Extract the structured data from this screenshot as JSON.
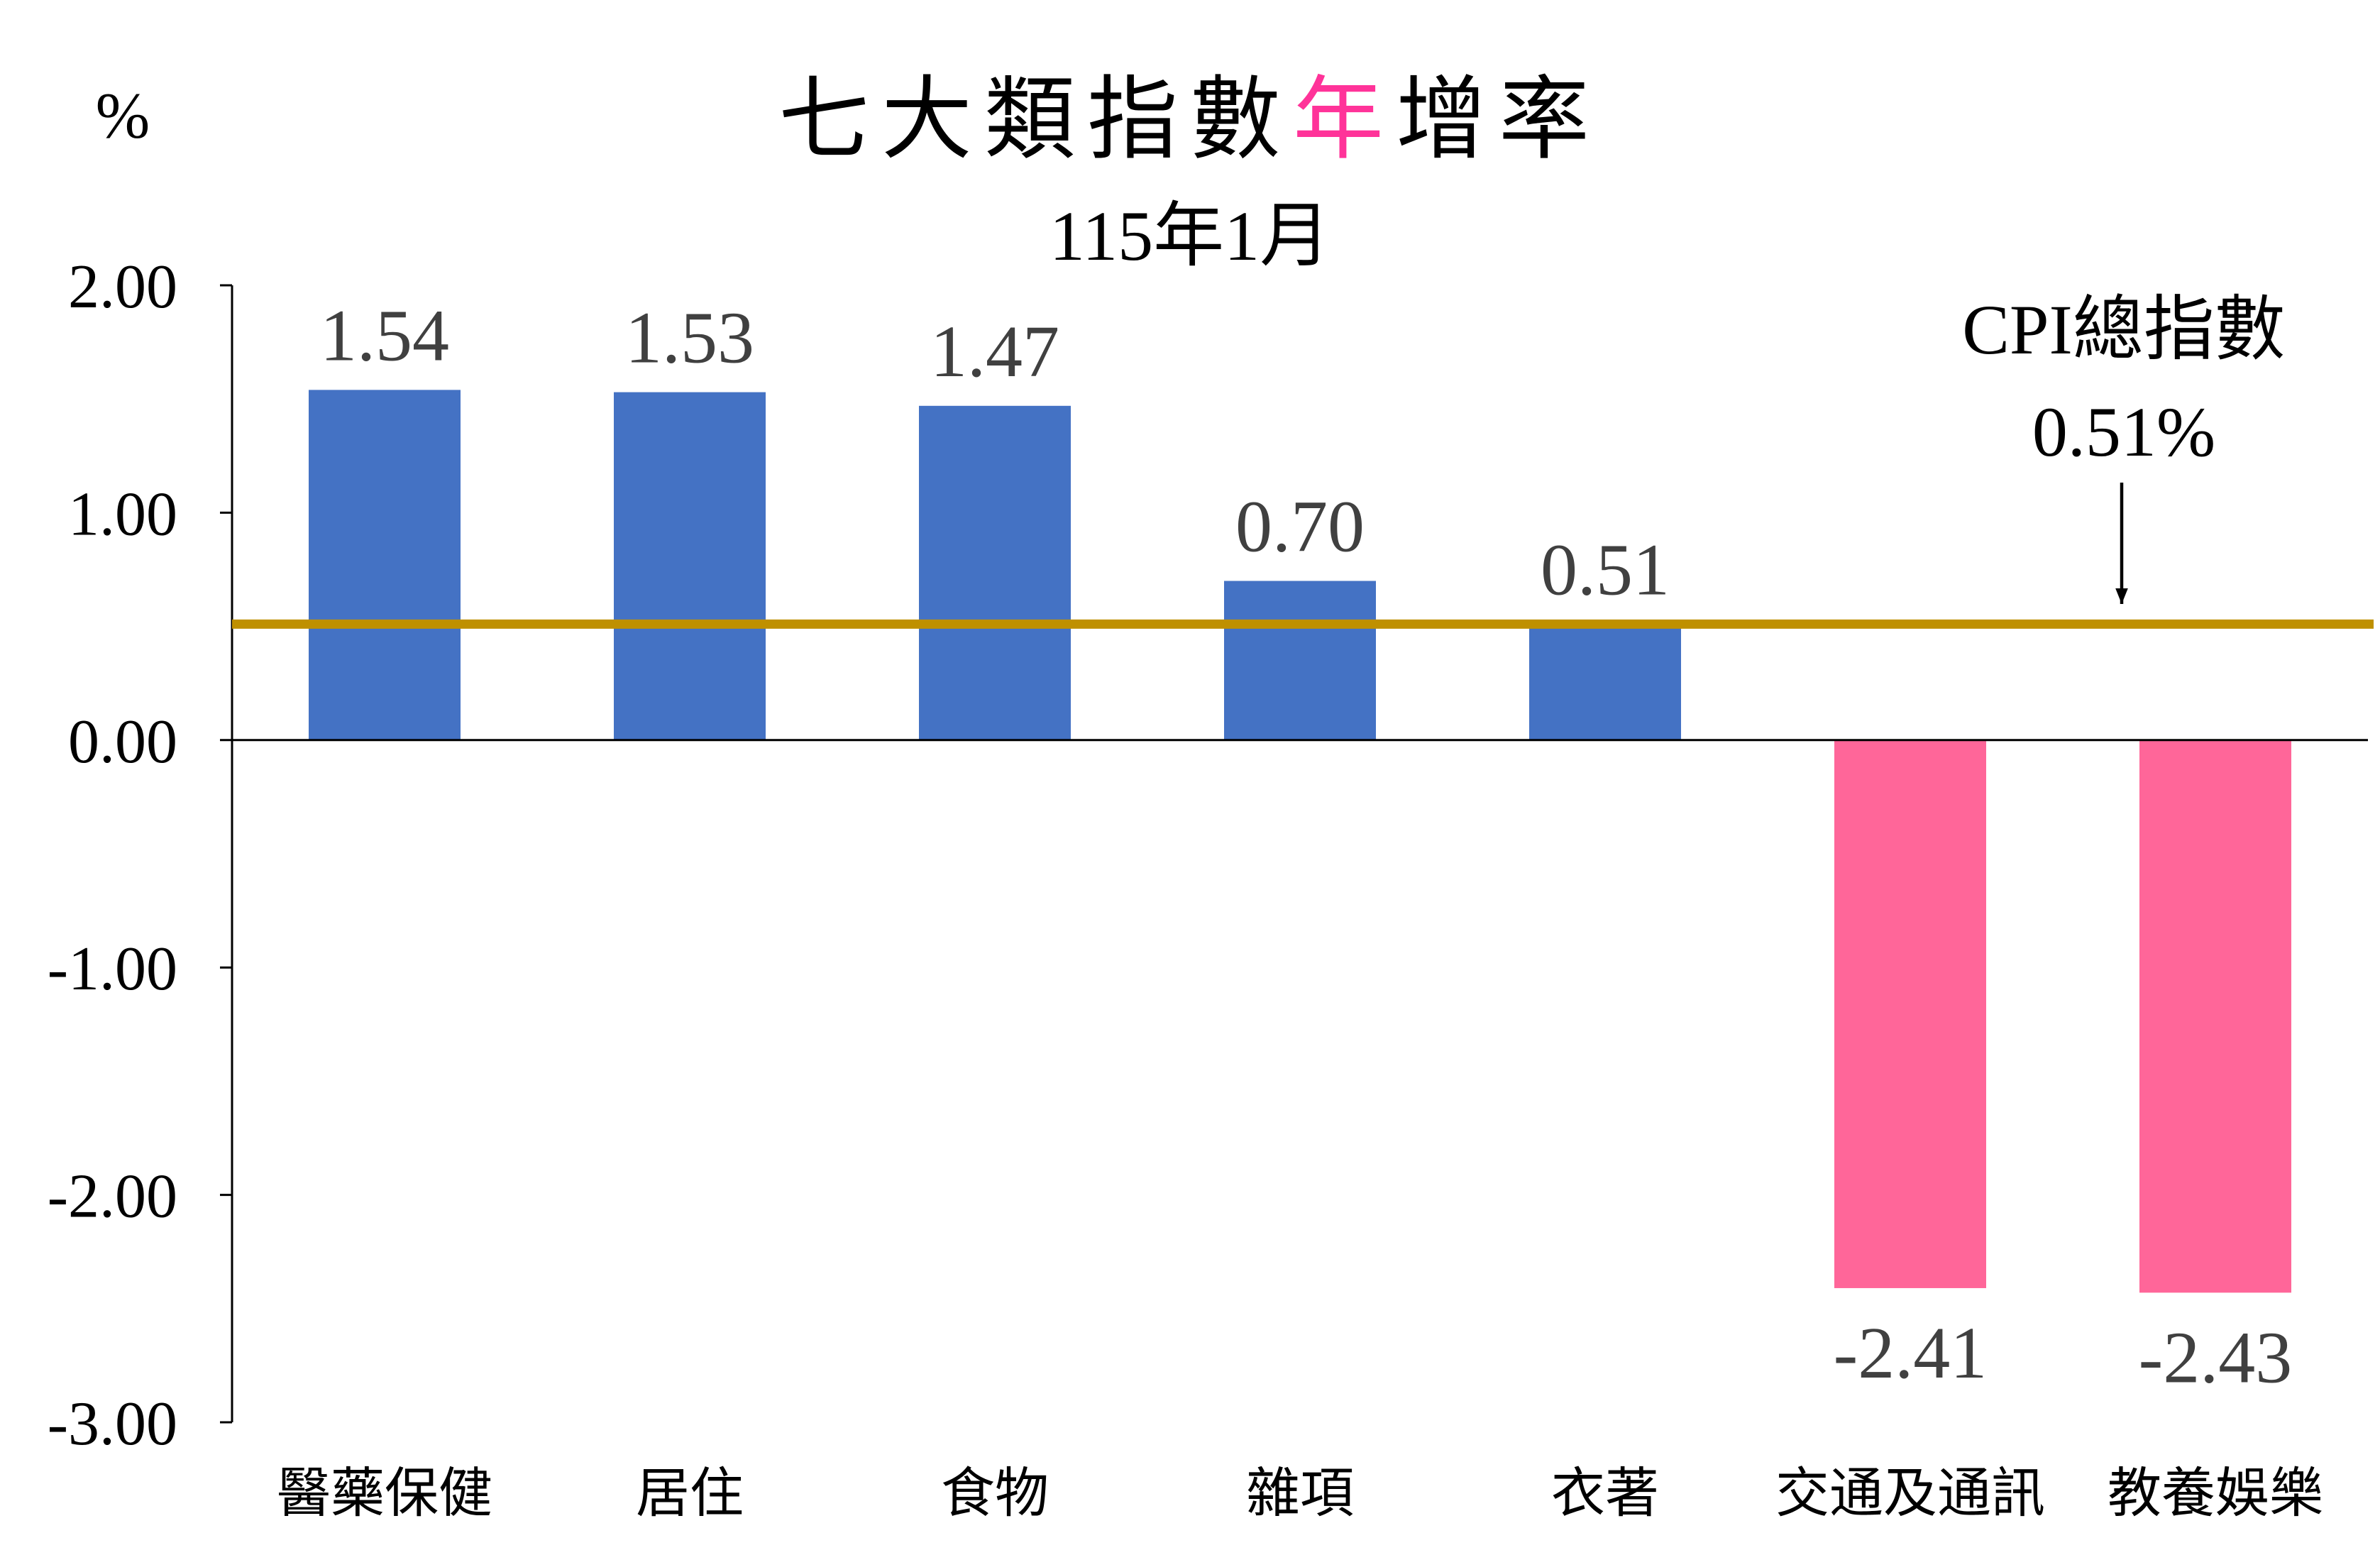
{
  "chart_data": {
    "type": "bar",
    "title": "七大類指數年增率",
    "title_highlight": "年",
    "subtitle": "115年1月",
    "ylabel": "%",
    "xlabel": "",
    "categories": [
      "醫藥保健",
      "居住",
      "食物",
      "雜項",
      "衣著",
      "交通及通訊",
      "教養娛樂"
    ],
    "values": [
      1.54,
      1.53,
      1.47,
      0.7,
      0.51,
      -2.41,
      -2.43
    ],
    "value_labels": [
      "1.54",
      "1.53",
      "1.47",
      "0.70",
      "0.51",
      "-2.41",
      "-2.43"
    ],
    "ylim": [
      -3,
      2
    ],
    "yticks": [
      2,
      1,
      0,
      -1,
      -2,
      -3
    ],
    "ytick_labels": [
      "2.00",
      "1.00",
      "0.00",
      "-1.00",
      "-2.00",
      "-3.00"
    ],
    "reference_line": {
      "label": "CPI總指數",
      "value": 0.51,
      "value_label": "0.51%"
    },
    "grid": false
  },
  "colors": {
    "positive": "#4472C4",
    "negative": "#FF6699",
    "reference_line": "#BF9000",
    "title_highlight": "#FF3399",
    "data_label": "#404040",
    "text": "#000000",
    "axis": "#000000"
  }
}
